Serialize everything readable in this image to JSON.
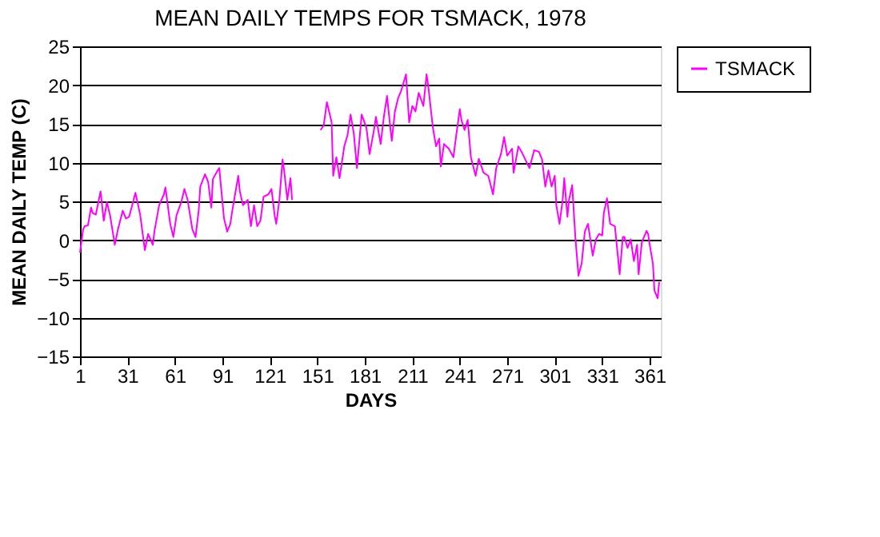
{
  "chart_data": {
    "type": "line",
    "title": "MEAN DAILY TEMPS FOR TSMACK, 1978",
    "xlabel": "DAYS",
    "ylabel": "MEAN DAILY TEMP (C)",
    "xlim": [
      1,
      368
    ],
    "xticks": [
      1,
      31,
      61,
      91,
      121,
      151,
      181,
      211,
      241,
      271,
      301,
      331,
      361
    ],
    "ylim": [
      -15,
      25
    ],
    "yticks": [
      -15,
      -10,
      -5,
      0,
      5,
      10,
      15,
      20,
      25
    ],
    "grid": "y",
    "legend": "right",
    "marker": "none",
    "line_style": "solid",
    "series": [
      {
        "name": "TSMACK",
        "color": "#ff00ff",
        "x": [
          1,
          3,
          4,
          6,
          8,
          9,
          11,
          14,
          16,
          18,
          20,
          23,
          25,
          28,
          30,
          32,
          34,
          36,
          37,
          39,
          42,
          44,
          47,
          48,
          51,
          54,
          55,
          58,
          60,
          62,
          65,
          67,
          69,
          72,
          74,
          76,
          77,
          80,
          82,
          84,
          85,
          88,
          89,
          92,
          94,
          96,
          97,
          101,
          102,
          104,
          107,
          109,
          111,
          113,
          115,
          117,
          120,
          122,
          124,
          125,
          127,
          129,
          130,
          132,
          134,
          135,
          144,
          153,
          155,
          157,
          160,
          161,
          163,
          165,
          168,
          170,
          172,
          174,
          176,
          179,
          182,
          184,
          187,
          188,
          191,
          193,
          195,
          198,
          200,
          202,
          204,
          207,
          209,
          211,
          213,
          215,
          218,
          220,
          221,
          224,
          226,
          228,
          229,
          231,
          234,
          237,
          238,
          241,
          242,
          244,
          246,
          248,
          251,
          253,
          256,
          259,
          262,
          264,
          267,
          269,
          271,
          274,
          275,
          278,
          280,
          285,
          288,
          291,
          293,
          295,
          297,
          299,
          301,
          302,
          304,
          306,
          307,
          309,
          310,
          312,
          314,
          316,
          318,
          320,
          322,
          325,
          327,
          329,
          331,
          332,
          334,
          336,
          339,
          342,
          344,
          345,
          347,
          349,
          351,
          353,
          354,
          356,
          359,
          360,
          361,
          363,
          364,
          366,
          367
        ],
        "values": [
          -1.6,
          1.4,
          1.8,
          1.9,
          4.2,
          3.5,
          3.3,
          6.3,
          2.5,
          4.9,
          3.2,
          -0.6,
          1.4,
          3.8,
          2.8,
          3.0,
          4.5,
          6.1,
          5.2,
          3.3,
          -1.3,
          0.8,
          -0.6,
          1.1,
          4.5,
          5.9,
          6.8,
          2.1,
          0.4,
          3.2,
          4.9,
          6.6,
          5.2,
          1.4,
          0.4,
          3.8,
          6.9,
          8.5,
          7.5,
          4.2,
          7.9,
          9.0,
          9.3,
          2.8,
          1.1,
          2.1,
          3.5,
          8.3,
          6.3,
          4.5,
          5.2,
          1.8,
          4.5,
          1.8,
          2.5,
          5.6,
          5.9,
          6.6,
          3.2,
          2.1,
          5.2,
          10.4,
          9.0,
          5.2,
          8.0,
          5.2,
          null,
          14.2,
          14.8,
          17.8,
          15.2,
          8.3,
          10.7,
          8.0,
          12.1,
          13.5,
          16.2,
          13.8,
          9.3,
          16.2,
          14.5,
          11.1,
          14.5,
          15.9,
          12.4,
          15.9,
          18.6,
          12.8,
          16.6,
          18.3,
          19.3,
          21.4,
          15.2,
          17.3,
          16.6,
          19.0,
          17.3,
          21.4,
          20.0,
          14.5,
          12.1,
          13.1,
          9.5,
          12.4,
          11.8,
          10.7,
          12.4,
          16.9,
          15.5,
          14.2,
          15.5,
          10.7,
          8.3,
          10.5,
          8.7,
          8.3,
          5.9,
          9.3,
          11.1,
          13.3,
          10.9,
          11.8,
          8.7,
          12.1,
          11.4,
          9.3,
          11.6,
          11.4,
          10.4,
          6.9,
          9.0,
          6.9,
          8.3,
          4.5,
          2.1,
          5.2,
          8.0,
          3.0,
          5.2,
          7.1,
          0.4,
          -4.6,
          -3.0,
          1.1,
          2.1,
          -2.0,
          0.1,
          0.8,
          0.6,
          3.5,
          5.4,
          2.1,
          1.8,
          -4.4,
          0.4,
          0.4,
          -1.0,
          0.1,
          -2.7,
          -0.6,
          -4.4,
          -0.3,
          1.2,
          0.8,
          -0.6,
          -3.0,
          -6.5,
          -7.5,
          -5.4
        ]
      }
    ]
  }
}
